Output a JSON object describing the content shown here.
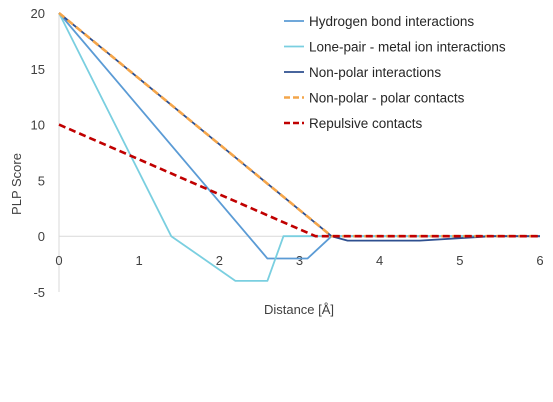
{
  "chart_data": {
    "type": "line",
    "title": "",
    "xlabel": "Distance [Å]",
    "ylabel": "PLP Score",
    "xlim": [
      0,
      6
    ],
    "ylim": [
      -5,
      20
    ],
    "xticks": [
      "0",
      "1",
      "2",
      "3",
      "4",
      "5",
      "6"
    ],
    "yticks": [
      "20",
      "15",
      "10",
      "5",
      "0",
      "-5"
    ],
    "grid": false,
    "legend_position": "top-right",
    "series": [
      {
        "name": "Hydrogen bond interactions",
        "color": "#5B9BD5",
        "style": "solid",
        "x": [
          0,
          2.6,
          3.1,
          3.4,
          6
        ],
        "y": [
          20,
          -2,
          -2,
          0,
          0
        ]
      },
      {
        "name": "Lone-pair - metal ion interactions",
        "color": "#7ACFE0",
        "style": "solid",
        "x": [
          0,
          1.4,
          2.2,
          2.6,
          2.8,
          3.1,
          6
        ],
        "y": [
          20,
          0,
          -4,
          -4,
          0,
          0,
          0
        ]
      },
      {
        "name": "Non-polar interactions",
        "color": "#2E4F8F",
        "style": "solid",
        "x": [
          0,
          3.4,
          3.6,
          4.5,
          5.4,
          6
        ],
        "y": [
          20,
          0,
          -0.4,
          -0.4,
          0,
          0
        ]
      },
      {
        "name": "Non-polar - polar contacts",
        "color": "#F4A54A",
        "style": "dashed",
        "x": [
          0,
          3.4,
          6
        ],
        "y": [
          20,
          0,
          0
        ]
      },
      {
        "name": "Repulsive contacts",
        "color": "#C00000",
        "style": "dashed",
        "x": [
          0,
          3.2,
          6
        ],
        "y": [
          10,
          0,
          0
        ]
      }
    ]
  }
}
